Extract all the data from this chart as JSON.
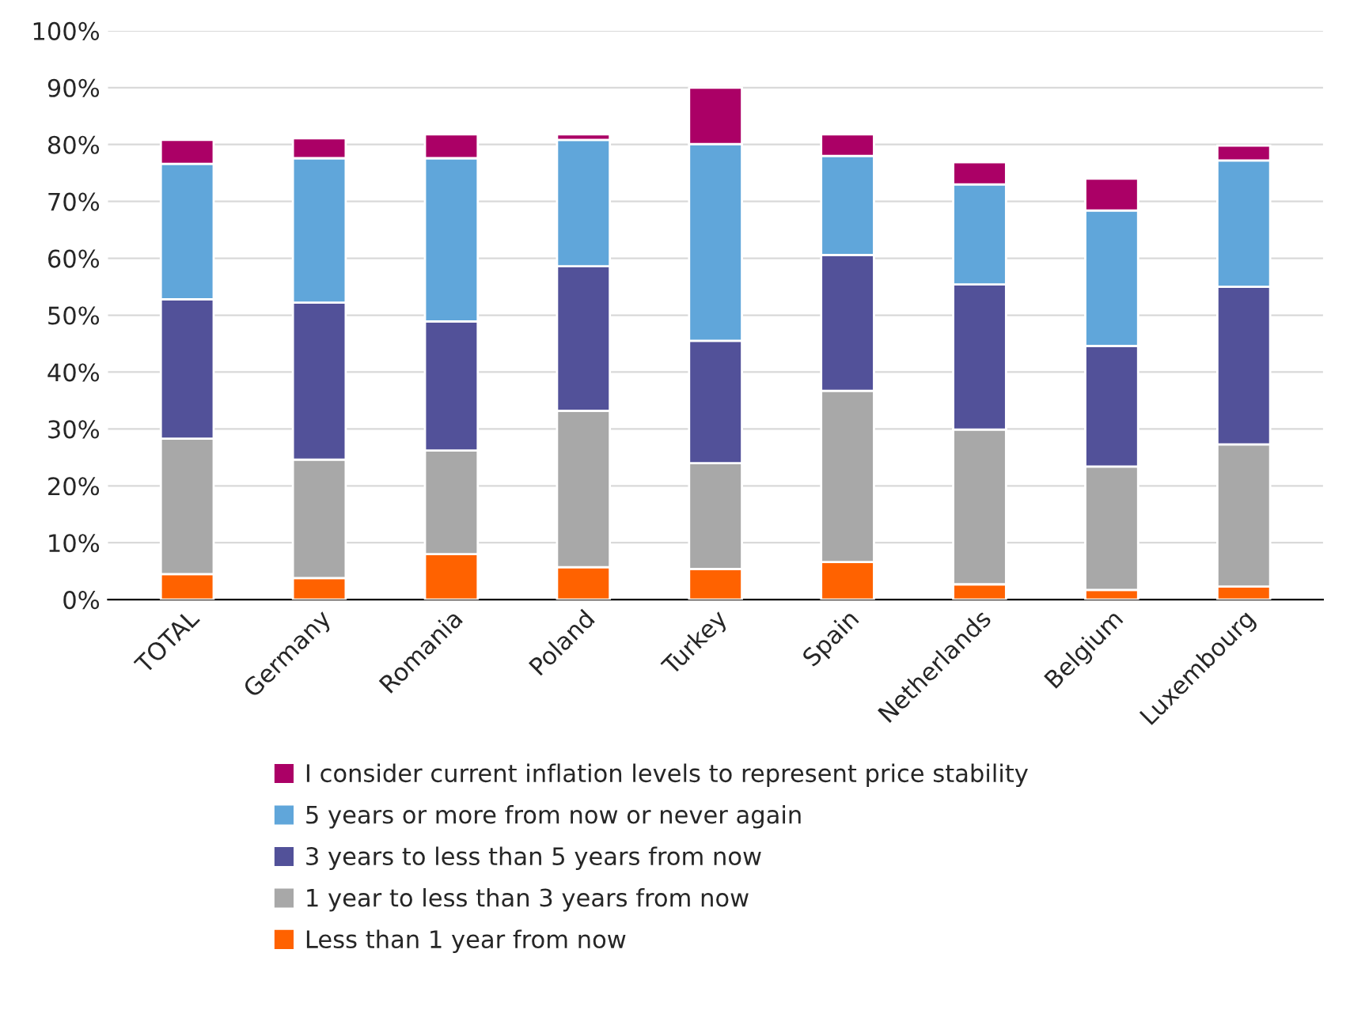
{
  "chart_data": {
    "type": "bar",
    "stacked": true,
    "categories": [
      "TOTAL",
      "Germany",
      "Romania",
      "Poland",
      "Turkey",
      "Spain",
      "Netherlands",
      "Belgium",
      "Luxembourg"
    ],
    "series": [
      {
        "name": "Less than 1 year from now",
        "color": "#ff6200",
        "values": [
          4.5,
          3.8,
          8.0,
          5.7,
          5.4,
          6.6,
          2.7,
          1.7,
          2.3
        ]
      },
      {
        "name": "1 year to less than 3 years from now",
        "color": "#a8a8a8",
        "values": [
          23.8,
          20.8,
          18.2,
          27.5,
          18.6,
          30.1,
          27.2,
          21.7,
          25.0
        ]
      },
      {
        "name": "3 years to less than 5 years from now",
        "color": "#525199",
        "values": [
          24.5,
          27.6,
          22.7,
          25.4,
          21.5,
          23.9,
          25.5,
          21.2,
          27.7
        ]
      },
      {
        "name": "5 years or more from now or never again",
        "color": "#60a6da",
        "values": [
          23.8,
          25.4,
          28.7,
          22.2,
          34.6,
          17.4,
          17.6,
          23.8,
          22.2
        ]
      },
      {
        "name": "I consider current inflation levels to represent price stability",
        "color": "#ab0066",
        "values": [
          4.2,
          3.5,
          4.2,
          1.0,
          9.9,
          3.8,
          3.9,
          5.6,
          2.6
        ]
      }
    ],
    "ylim": [
      0,
      100
    ],
    "yticks": [
      {
        "value": 0,
        "label": "0%"
      },
      {
        "value": 10,
        "label": "10%"
      },
      {
        "value": 20,
        "label": "20%"
      },
      {
        "value": 30,
        "label": "30%"
      },
      {
        "value": 40,
        "label": "40%"
      },
      {
        "value": 50,
        "label": "50%"
      },
      {
        "value": 60,
        "label": "60%"
      },
      {
        "value": 70,
        "label": "70%"
      },
      {
        "value": 80,
        "label": "80%"
      },
      {
        "value": 90,
        "label": "90%"
      },
      {
        "value": 100,
        "label": "100%"
      }
    ],
    "grid": "y",
    "legend": "bottom"
  }
}
